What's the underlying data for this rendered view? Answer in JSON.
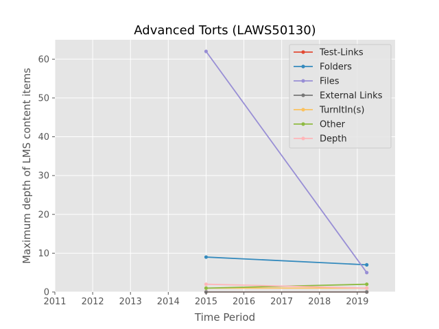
{
  "chart_data": {
    "type": "line",
    "title": "Advanced Torts (LAWS50130)",
    "xlabel": "Time Period",
    "ylabel": "Maximum depth of LMS content items",
    "xlim": [
      2011,
      2020
    ],
    "ylim": [
      0,
      65
    ],
    "x_ticks": [
      "2011",
      "2012",
      "2013",
      "2014",
      "2015",
      "2016",
      "2017",
      "2018",
      "2019"
    ],
    "y_ticks": [
      "0",
      "10",
      "20",
      "30",
      "40",
      "50",
      "60"
    ],
    "grid": true,
    "legend_position": "top-right",
    "series": [
      {
        "name": "Test-Links",
        "color": "#E24A33",
        "x": [
          2015,
          2019.25
        ],
        "y": [
          0,
          0
        ]
      },
      {
        "name": "Folders",
        "color": "#348ABD",
        "x": [
          2015,
          2019.25
        ],
        "y": [
          9,
          7
        ]
      },
      {
        "name": "Files",
        "color": "#988ED5",
        "x": [
          2015,
          2019.25
        ],
        "y": [
          62,
          5
        ]
      },
      {
        "name": "External Links",
        "color": "#777777",
        "x": [
          2015,
          2019.25
        ],
        "y": [
          0,
          0
        ]
      },
      {
        "name": "TurnItIn(s)",
        "color": "#FBC15E",
        "x": [
          2015,
          2019.25
        ],
        "y": [
          1,
          1
        ]
      },
      {
        "name": "Other",
        "color": "#8EBA42",
        "x": [
          2015,
          2019.25
        ],
        "y": [
          1,
          2
        ]
      },
      {
        "name": "Depth",
        "color": "#FFB5B8",
        "x": [
          2015,
          2019.25
        ],
        "y": [
          2,
          1
        ]
      }
    ]
  }
}
